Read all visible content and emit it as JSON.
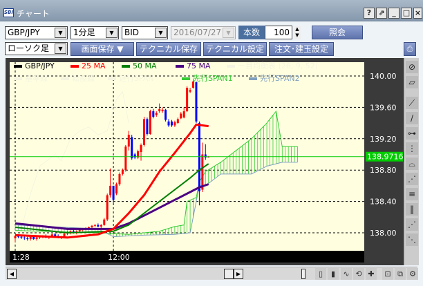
{
  "window": {
    "title": "チャート",
    "logo": "SBI",
    "buttons": [
      "?",
      "⇗",
      "_",
      "□",
      "×"
    ]
  },
  "toolbar": {
    "pair": "GBP/JPY",
    "timeframe": "1分足",
    "price_type": "BID",
    "date": "2016/07/27",
    "count_label": "本数",
    "count_value": "100",
    "query_button": "照会",
    "chart_type": "ローソク足",
    "save_screen": "画面保存 ▼",
    "save_technical": "テクニカル保存▼",
    "technical_settings": "テクニカル設定",
    "order_settings": "注文･建玉設定"
  },
  "colors": {
    "background": "#ffffe0",
    "up": "#ff0000",
    "down": "#0000ff",
    "ma25": "#ff0000",
    "ma50": "#008000",
    "ma75": "#4b0082",
    "span1": "#33cc33",
    "span2": "#7f9fbf",
    "current": "#00cc00"
  },
  "chart_data": {
    "type": "candlestick",
    "legend": [
      {
        "name": "GBP/JPY",
        "color": "#000000"
      },
      {
        "name": "25 MA",
        "color": "#ff0000"
      },
      {
        "name": "50 MA",
        "color": "#008000"
      },
      {
        "name": "75 MA",
        "color": "#4b0082"
      },
      {
        "name": "一目均衡表 (26, 9, 52)",
        "color": "#f4f4e0"
      },
      {
        "name": "基準線",
        "color": "#f4f4e0"
      },
      {
        "name": "転換線",
        "color": "#f4f4e0"
      },
      {
        "name": "遅行SPAN",
        "color": "#f4f4e0"
      },
      {
        "name": "先行SPAN1",
        "color": "#33cc33"
      },
      {
        "name": "先行SPAN2",
        "color": "#7f9fbf"
      }
    ],
    "y_ticks": [
      "140.00",
      "139.60",
      "139.20",
      "138.80",
      "138.40",
      "138.00"
    ],
    "x_ticks": [
      "1:28",
      "12:00"
    ],
    "current_price": "138.9716",
    "grid": true,
    "candles": [
      [
        "11:28",
        137.93,
        137.97,
        137.88,
        137.96
      ],
      [
        "11:29",
        137.96,
        137.98,
        137.93,
        137.95
      ],
      [
        "11:30",
        137.95,
        137.97,
        137.92,
        137.94
      ],
      [
        "11:31",
        137.94,
        137.96,
        137.91,
        137.93
      ],
      [
        "11:32",
        137.93,
        137.95,
        137.9,
        137.92
      ],
      [
        "11:33",
        137.92,
        137.96,
        137.9,
        137.95
      ],
      [
        "11:34",
        137.95,
        137.97,
        137.91,
        137.92
      ],
      [
        "11:35",
        137.92,
        137.95,
        137.9,
        137.94
      ],
      [
        "11:36",
        137.94,
        137.96,
        137.92,
        137.95
      ],
      [
        "11:37",
        137.95,
        137.97,
        137.93,
        137.96
      ],
      [
        "11:38",
        137.96,
        137.98,
        137.93,
        137.94
      ],
      [
        "11:39",
        137.94,
        137.96,
        137.92,
        137.95
      ],
      [
        "11:40",
        137.95,
        137.99,
        137.94,
        137.98
      ],
      [
        "11:41",
        137.98,
        138.0,
        137.95,
        137.96
      ],
      [
        "11:42",
        137.96,
        137.98,
        137.93,
        137.94
      ],
      [
        "11:43",
        137.94,
        137.96,
        137.92,
        137.95
      ],
      [
        "11:44",
        137.95,
        138.0,
        137.94,
        137.99
      ],
      [
        "11:45",
        137.99,
        138.02,
        137.97,
        138.0
      ],
      [
        "11:46",
        138.0,
        138.03,
        137.98,
        138.02
      ],
      [
        "11:47",
        138.02,
        138.04,
        137.99,
        138.0
      ],
      [
        "11:48",
        138.0,
        138.03,
        137.98,
        138.02
      ],
      [
        "11:49",
        138.02,
        138.05,
        138.0,
        138.04
      ],
      [
        "11:50",
        138.04,
        138.06,
        138.02,
        138.05
      ],
      [
        "11:51",
        138.05,
        138.07,
        138.03,
        138.06
      ],
      [
        "11:52",
        138.06,
        138.08,
        138.04,
        138.07
      ],
      [
        "11:53",
        138.07,
        138.1,
        138.05,
        138.09
      ],
      [
        "11:54",
        138.09,
        138.11,
        138.07,
        138.1
      ],
      [
        "11:55",
        138.1,
        138.12,
        138.07,
        138.08
      ],
      [
        "11:56",
        138.08,
        138.11,
        138.06,
        138.1
      ],
      [
        "11:57",
        138.1,
        138.19,
        138.09,
        138.17
      ],
      [
        "11:58",
        138.17,
        138.5,
        138.15,
        138.48
      ],
      [
        "11:59",
        138.48,
        138.82,
        138.45,
        138.6
      ],
      [
        "12:00",
        138.6,
        138.6,
        138.38,
        138.42
      ],
      [
        "12:01",
        138.5,
        138.64,
        138.48,
        138.62
      ],
      [
        "12:02",
        138.62,
        138.77,
        138.6,
        138.75
      ],
      [
        "12:03",
        138.75,
        138.82,
        138.73,
        138.8
      ],
      [
        "12:04",
        138.8,
        139.12,
        138.78,
        139.1
      ],
      [
        "12:05",
        139.1,
        139.3,
        139.05,
        139.25
      ],
      [
        "12:06",
        139.22,
        139.25,
        138.93,
        138.95
      ],
      [
        "12:07",
        139.0,
        139.02,
        138.94,
        138.96
      ],
      [
        "12:08",
        138.96,
        139.06,
        138.94,
        139.04
      ],
      [
        "12:09",
        139.03,
        139.14,
        138.92,
        139.12
      ],
      [
        "12:10",
        139.12,
        139.48,
        139.1,
        139.45
      ],
      [
        "12:11",
        139.45,
        139.47,
        139.24,
        139.26
      ],
      [
        "12:12",
        139.26,
        139.57,
        139.25,
        139.55
      ],
      [
        "12:13",
        139.55,
        139.58,
        139.46,
        139.48
      ],
      [
        "12:14",
        139.5,
        139.55,
        139.48,
        139.53
      ],
      [
        "12:15",
        139.55,
        139.65,
        139.53,
        139.58
      ],
      [
        "12:16",
        139.55,
        139.6,
        139.53,
        139.57
      ],
      [
        "12:17",
        139.57,
        139.58,
        139.42,
        139.44
      ],
      [
        "12:18",
        139.42,
        139.45,
        139.35,
        139.37
      ],
      [
        "12:19",
        139.42,
        139.44,
        139.35,
        139.37
      ],
      [
        "12:20",
        139.37,
        139.43,
        139.35,
        139.41
      ],
      [
        "12:21",
        139.4,
        139.47,
        139.39,
        139.45
      ],
      [
        "12:22",
        139.46,
        139.54,
        139.45,
        139.52
      ],
      [
        "12:23",
        139.47,
        139.6,
        139.46,
        139.55
      ],
      [
        "12:24",
        139.55,
        139.87,
        139.54,
        139.85
      ],
      [
        "12:25",
        139.8,
        139.85,
        139.78,
        139.82
      ],
      [
        "12:26",
        139.85,
        139.96,
        139.84,
        139.93
      ],
      [
        "12:27",
        139.92,
        139.93,
        139.4,
        139.42
      ],
      [
        "12:28",
        139.4,
        139.42,
        138.35,
        138.53
      ],
      [
        "12:29",
        138.55,
        139.15,
        138.52,
        139.0
      ],
      [
        "12:30",
        139.0,
        139.13,
        138.93,
        138.96
      ],
      [
        "12:31",
        138.97,
        138.98,
        138.96,
        138.97
      ]
    ],
    "lines": {
      "ma25": [
        [
          "11:28",
          137.97
        ],
        [
          "11:45",
          137.94
        ],
        [
          "11:55",
          137.98
        ],
        [
          "12:00",
          138.05
        ],
        [
          "12:05",
          138.25
        ],
        [
          "12:10",
          138.48
        ],
        [
          "12:15",
          138.78
        ],
        [
          "12:20",
          139.02
        ],
        [
          "12:25",
          139.27
        ],
        [
          "12:27",
          139.38
        ],
        [
          "12:31",
          139.36
        ]
      ],
      "ma50": [
        [
          "11:28",
          138.07
        ],
        [
          "11:45",
          138.0
        ],
        [
          "12:00",
          138.02
        ],
        [
          "12:05",
          138.1
        ],
        [
          "12:10",
          138.25
        ],
        [
          "12:15",
          138.4
        ],
        [
          "12:20",
          138.55
        ],
        [
          "12:25",
          138.7
        ],
        [
          "12:28",
          138.8
        ],
        [
          "12:31",
          138.88
        ]
      ],
      "ma75": [
        [
          "11:28",
          138.12
        ],
        [
          "11:45",
          138.05
        ],
        [
          "12:00",
          138.05
        ],
        [
          "12:05",
          138.12
        ],
        [
          "12:10",
          138.22
        ],
        [
          "12:15",
          138.32
        ],
        [
          "12:20",
          138.42
        ],
        [
          "12:25",
          138.52
        ],
        [
          "12:28",
          138.58
        ],
        [
          "12:31",
          138.62
        ]
      ],
      "chikou": [
        [
          "11:28",
          138.0
        ],
        [
          "11:30",
          138.05
        ],
        [
          "11:33",
          138.5
        ],
        [
          "11:36",
          138.85
        ],
        [
          "11:41",
          139.0
        ],
        [
          "11:43",
          138.92
        ],
        [
          "11:46",
          139.2
        ],
        [
          "11:49",
          139.3
        ],
        [
          "11:52",
          139.35
        ],
        [
          "11:55",
          139.25
        ],
        [
          "11:58",
          139.3
        ],
        [
          "12:01",
          139.7
        ],
        [
          "12:03",
          139.8
        ],
        [
          "12:05",
          139.4
        ]
      ],
      "span1": [
        [
          "11:28",
          138.03
        ],
        [
          "11:55",
          138.0
        ],
        [
          "12:05",
          137.98
        ],
        [
          "12:15",
          138.02
        ],
        [
          "12:20",
          138.08
        ],
        [
          "12:23",
          138.1
        ],
        [
          "12:24",
          138.4
        ],
        [
          "12:27",
          138.45
        ],
        [
          "12:28",
          138.65
        ],
        [
          "12:30",
          138.78
        ],
        [
          "12:35",
          138.9
        ],
        [
          "12:40",
          139.05
        ],
        [
          "12:45",
          139.2
        ],
        [
          "12:50",
          139.4
        ],
        [
          "12:53",
          139.55
        ],
        [
          "12:55",
          139.1
        ],
        [
          "13:00",
          139.1
        ]
      ],
      "span2": [
        [
          "11:28",
          138.1
        ],
        [
          "11:55",
          138.05
        ],
        [
          "12:00",
          137.95
        ],
        [
          "12:10",
          137.97
        ],
        [
          "12:20",
          137.98
        ],
        [
          "12:25",
          138.0
        ],
        [
          "12:27",
          138.4
        ],
        [
          "12:28",
          138.6
        ],
        [
          "12:30",
          138.6
        ],
        [
          "12:35",
          138.75
        ],
        [
          "12:45",
          138.75
        ],
        [
          "12:50",
          138.85
        ],
        [
          "12:55",
          138.9
        ],
        [
          "13:00",
          138.9
        ]
      ]
    }
  }
}
